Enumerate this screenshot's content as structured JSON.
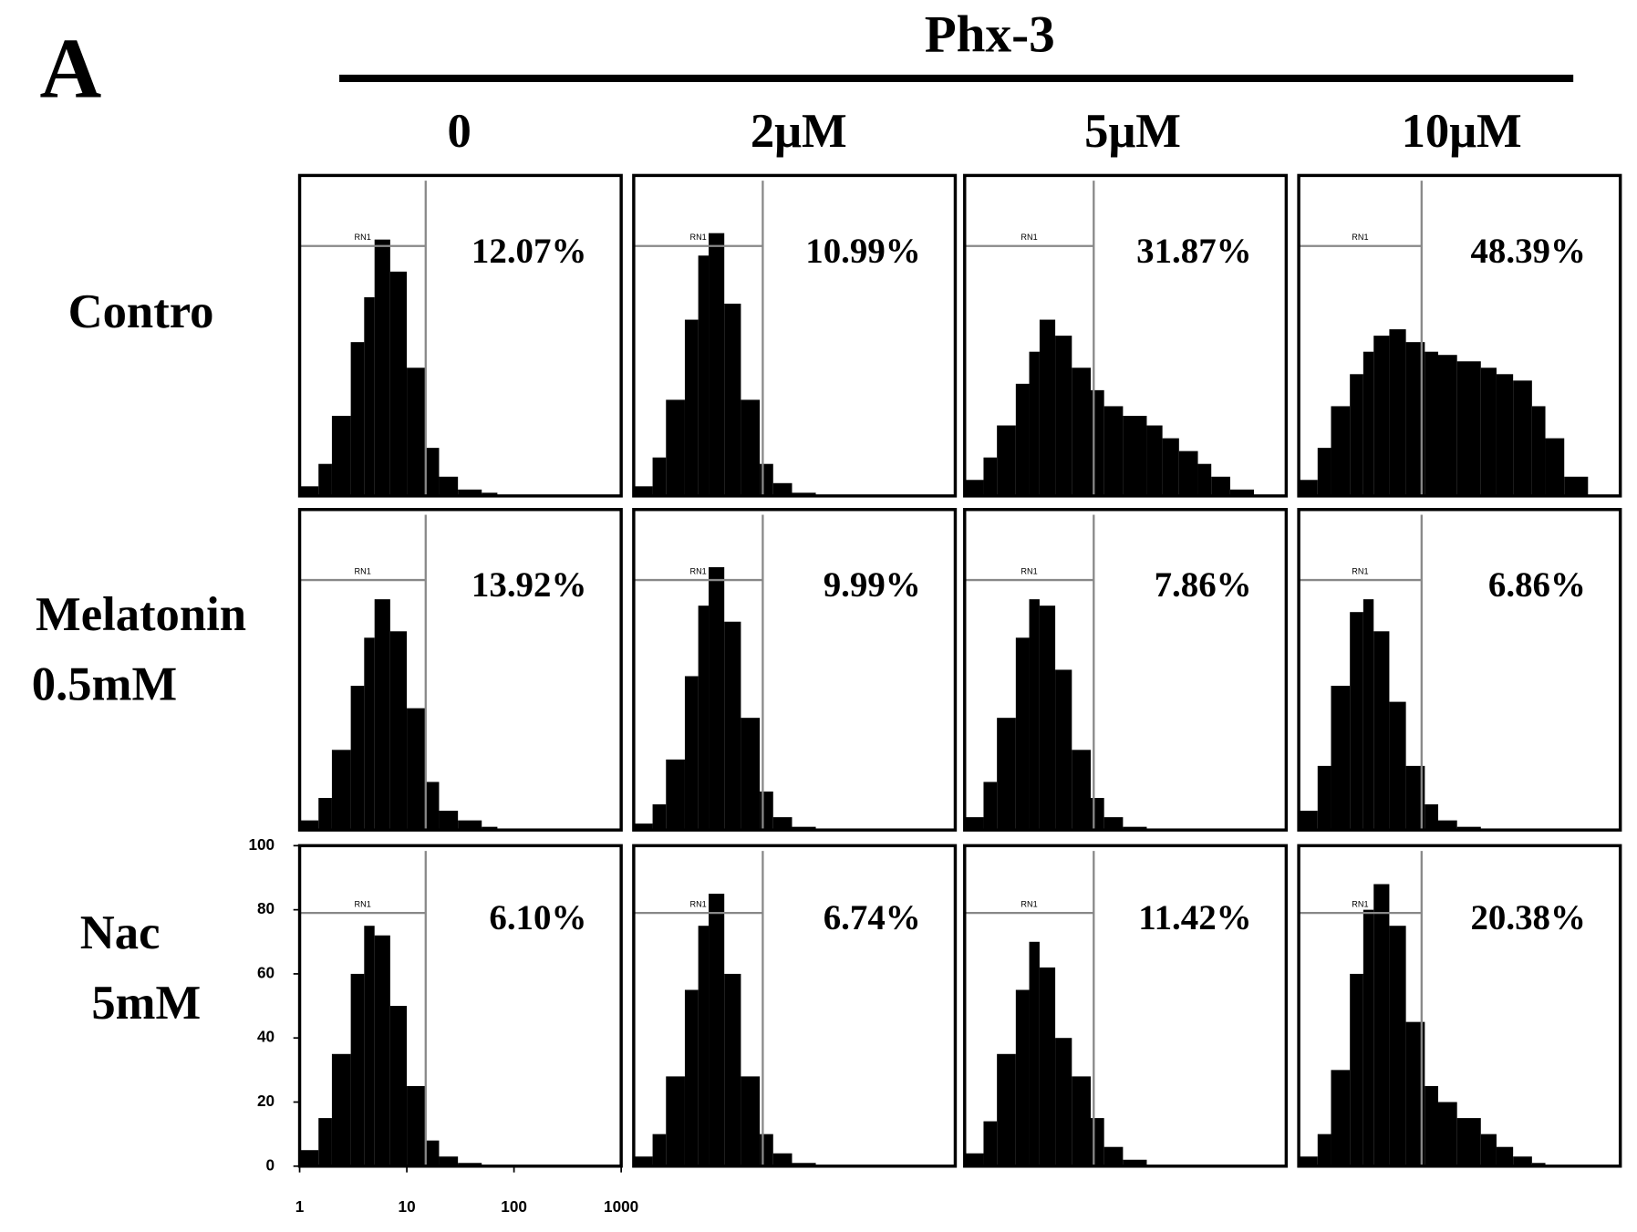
{
  "panel_label": "A",
  "group_label": "Phx-3",
  "column_labels": [
    "0",
    "2μM",
    "5μM",
    "10μM"
  ],
  "row_labels": [
    [
      "Contro"
    ],
    [
      "Melatonin",
      "0.5mM"
    ],
    [
      "Nac",
      "5mM"
    ]
  ],
  "chart_data": [
    {
      "type": "histogram",
      "bins": [
        1,
        1.5,
        2,
        3,
        4,
        5,
        7,
        10,
        15,
        20,
        30,
        50,
        70,
        100,
        150,
        200,
        300,
        500,
        1000
      ],
      "values": [
        3,
        10,
        25,
        48,
        62,
        80,
        70,
        40,
        15,
        6,
        2,
        1,
        0,
        0,
        0,
        0,
        0,
        0
      ],
      "xlim": [
        1,
        1000
      ],
      "ylim": [
        0,
        100
      ],
      "log_x": true,
      "gate": [
        1,
        15
      ],
      "gate_level": 78,
      "gate_label": "RN1",
      "annotation": "12.07%",
      "color": "#000000"
    },
    {
      "type": "histogram",
      "bins": [
        1,
        1.5,
        2,
        3,
        4,
        5,
        7,
        10,
        15,
        20,
        30,
        50,
        70,
        100,
        150,
        200,
        300,
        500,
        1000
      ],
      "values": [
        3,
        12,
        30,
        55,
        75,
        82,
        60,
        30,
        10,
        4,
        1,
        0,
        0,
        0,
        0,
        0,
        0,
        0
      ],
      "xlim": [
        1,
        1000
      ],
      "ylim": [
        0,
        100
      ],
      "log_x": true,
      "gate": [
        1,
        16
      ],
      "gate_level": 78,
      "gate_label": "RN1",
      "annotation": "10.99%",
      "color": "#000000"
    },
    {
      "type": "histogram",
      "bins": [
        1,
        1.5,
        2,
        3,
        4,
        5,
        7,
        10,
        15,
        20,
        30,
        50,
        70,
        100,
        150,
        200,
        300,
        500,
        1000
      ],
      "values": [
        5,
        12,
        22,
        35,
        45,
        55,
        50,
        40,
        33,
        28,
        25,
        22,
        18,
        14,
        10,
        6,
        2,
        0
      ],
      "xlim": [
        1,
        1000
      ],
      "ylim": [
        0,
        100
      ],
      "log_x": true,
      "gate": [
        1,
        16
      ],
      "gate_level": 78,
      "gate_label": "RN1",
      "annotation": "31.87%",
      "color": "#000000"
    },
    {
      "type": "histogram",
      "bins": [
        1,
        1.5,
        2,
        3,
        4,
        5,
        7,
        10,
        15,
        20,
        30,
        50,
        70,
        100,
        150,
        200,
        300,
        500,
        1000
      ],
      "values": [
        5,
        15,
        28,
        38,
        45,
        50,
        52,
        48,
        45,
        44,
        42,
        40,
        38,
        36,
        28,
        18,
        6,
        0
      ],
      "xlim": [
        1,
        1000
      ],
      "ylim": [
        0,
        100
      ],
      "log_x": true,
      "gate": [
        1,
        14
      ],
      "gate_level": 78,
      "gate_label": "RN1",
      "annotation": "48.39%",
      "color": "#000000"
    },
    {
      "type": "histogram",
      "bins": [
        1,
        1.5,
        2,
        3,
        4,
        5,
        7,
        10,
        15,
        20,
        30,
        50,
        70,
        100,
        150,
        200,
        300,
        500,
        1000
      ],
      "values": [
        3,
        10,
        25,
        45,
        60,
        72,
        62,
        38,
        15,
        6,
        3,
        1,
        0,
        0,
        0,
        0,
        0,
        0
      ],
      "xlim": [
        1,
        1000
      ],
      "ylim": [
        0,
        100
      ],
      "log_x": true,
      "gate": [
        1,
        15
      ],
      "gate_level": 78,
      "gate_label": "RN1",
      "annotation": "13.92%",
      "color": "#000000"
    },
    {
      "type": "histogram",
      "bins": [
        1,
        1.5,
        2,
        3,
        4,
        5,
        7,
        10,
        15,
        20,
        30,
        50,
        70,
        100,
        150,
        200,
        300,
        500,
        1000
      ],
      "values": [
        2,
        8,
        22,
        48,
        70,
        82,
        65,
        35,
        12,
        4,
        1,
        0,
        0,
        0,
        0,
        0,
        0,
        0
      ],
      "xlim": [
        1,
        1000
      ],
      "ylim": [
        0,
        100
      ],
      "log_x": true,
      "gate": [
        1,
        16
      ],
      "gate_level": 78,
      "gate_label": "RN1",
      "annotation": "9.99%",
      "color": "#000000"
    },
    {
      "type": "histogram",
      "bins": [
        1,
        1.5,
        2,
        3,
        4,
        5,
        7,
        10,
        15,
        20,
        30,
        50,
        70,
        100,
        150,
        200,
        300,
        500,
        1000
      ],
      "values": [
        4,
        15,
        35,
        60,
        72,
        70,
        50,
        25,
        10,
        4,
        1,
        0,
        0,
        0,
        0,
        0,
        0,
        0
      ],
      "xlim": [
        1,
        1000
      ],
      "ylim": [
        0,
        100
      ],
      "log_x": true,
      "gate": [
        1,
        16
      ],
      "gate_level": 78,
      "gate_label": "RN1",
      "annotation": "7.86%",
      "color": "#000000"
    },
    {
      "type": "histogram",
      "bins": [
        1,
        1.5,
        2,
        3,
        4,
        5,
        7,
        10,
        15,
        20,
        30,
        50,
        70,
        100,
        150,
        200,
        300,
        500,
        1000
      ],
      "values": [
        6,
        20,
        45,
        68,
        72,
        62,
        40,
        20,
        8,
        3,
        1,
        0,
        0,
        0,
        0,
        0,
        0,
        0
      ],
      "xlim": [
        1,
        1000
      ],
      "ylim": [
        0,
        100
      ],
      "log_x": true,
      "gate": [
        1,
        14
      ],
      "gate_level": 78,
      "gate_label": "RN1",
      "annotation": "6.86%",
      "color": "#000000"
    },
    {
      "type": "histogram",
      "bins": [
        1,
        1.5,
        2,
        3,
        4,
        5,
        7,
        10,
        15,
        20,
        30,
        50,
        70,
        100,
        150,
        200,
        300,
        500,
        1000
      ],
      "values": [
        5,
        15,
        35,
        60,
        75,
        72,
        50,
        25,
        8,
        3,
        1,
        0,
        0,
        0,
        0,
        0,
        0,
        0
      ],
      "xlim": [
        1,
        1000
      ],
      "ylim": [
        0,
        100
      ],
      "log_x": true,
      "xticks": [
        1,
        10,
        100,
        1000
      ],
      "yticks": [
        0,
        20,
        40,
        60,
        80,
        100
      ],
      "gate": [
        1,
        15
      ],
      "gate_level": 79,
      "gate_label": "RN1",
      "annotation": "6.10%",
      "color": "#000000"
    },
    {
      "type": "histogram",
      "bins": [
        1,
        1.5,
        2,
        3,
        4,
        5,
        7,
        10,
        15,
        20,
        30,
        50,
        70,
        100,
        150,
        200,
        300,
        500,
        1000
      ],
      "values": [
        3,
        10,
        28,
        55,
        75,
        85,
        60,
        28,
        10,
        4,
        1,
        0,
        0,
        0,
        0,
        0,
        0,
        0
      ],
      "xlim": [
        1,
        1000
      ],
      "ylim": [
        0,
        100
      ],
      "log_x": true,
      "gate": [
        1,
        16
      ],
      "gate_level": 79,
      "gate_label": "RN1",
      "annotation": "6.74%",
      "color": "#000000"
    },
    {
      "type": "histogram",
      "bins": [
        1,
        1.5,
        2,
        3,
        4,
        5,
        7,
        10,
        15,
        20,
        30,
        50,
        70,
        100,
        150,
        200,
        300,
        500,
        1000
      ],
      "values": [
        4,
        14,
        35,
        55,
        70,
        62,
        40,
        28,
        15,
        6,
        2,
        0,
        0,
        0,
        0,
        0,
        0,
        0
      ],
      "xlim": [
        1,
        1000
      ],
      "ylim": [
        0,
        100
      ],
      "log_x": true,
      "gate": [
        1,
        16
      ],
      "gate_level": 79,
      "gate_label": "RN1",
      "annotation": "11.42%",
      "color": "#000000"
    },
    {
      "type": "histogram",
      "bins": [
        1,
        1.5,
        2,
        3,
        4,
        5,
        7,
        10,
        15,
        20,
        30,
        50,
        70,
        100,
        150,
        200,
        300,
        500,
        1000
      ],
      "values": [
        3,
        10,
        30,
        60,
        80,
        88,
        75,
        45,
        25,
        20,
        15,
        10,
        6,
        3,
        1,
        0,
        0,
        0
      ],
      "xlim": [
        1,
        1000
      ],
      "ylim": [
        0,
        100
      ],
      "log_x": true,
      "gate": [
        1,
        14
      ],
      "gate_level": 79,
      "gate_label": "RN1",
      "annotation": "20.38%",
      "color": "#000000"
    }
  ]
}
